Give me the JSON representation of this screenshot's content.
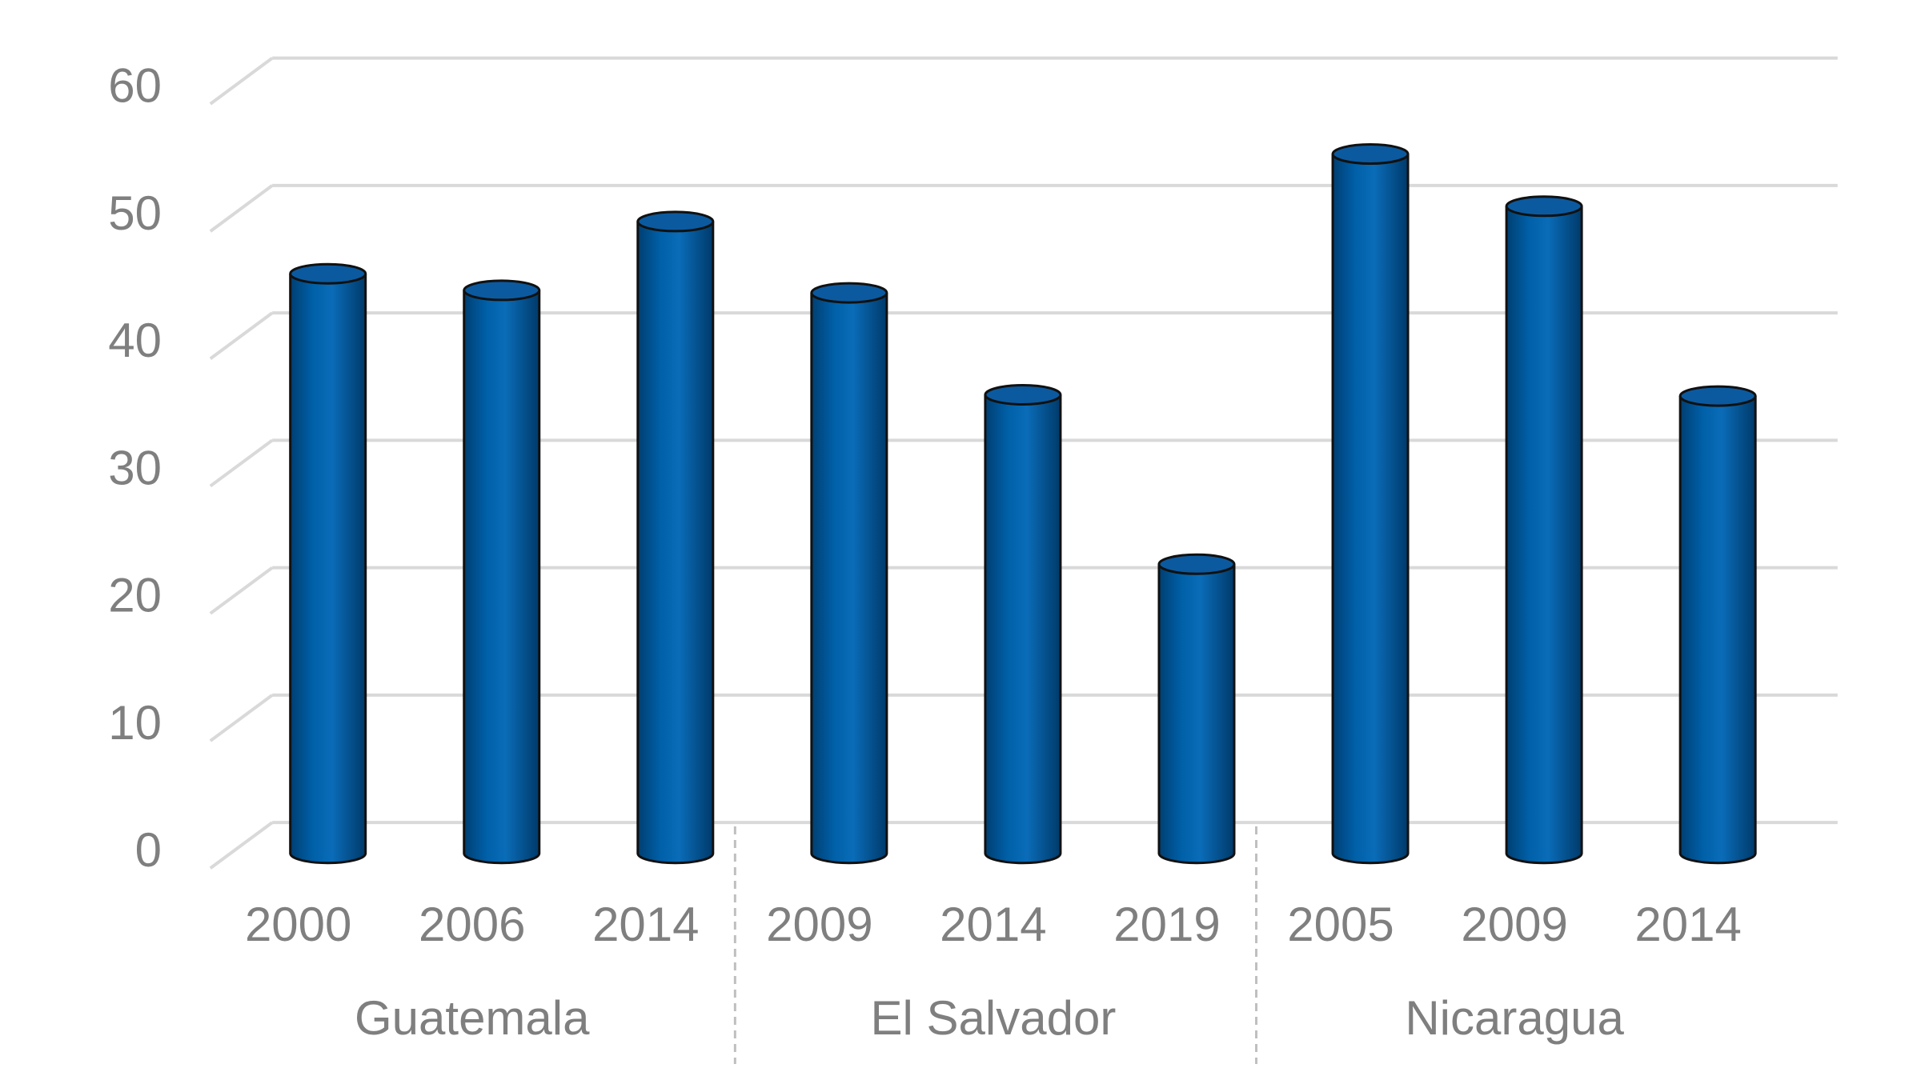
{
  "chart_data": {
    "type": "bar",
    "color": "#0060a8",
    "ylim": [
      0,
      60
    ],
    "yticks": [
      0,
      10,
      20,
      30,
      40,
      50,
      60
    ],
    "grid": true,
    "groups": [
      {
        "name": "Guatemala",
        "categories": [
          "2000",
          "2006",
          "2014"
        ],
        "values": [
          45.5,
          44.2,
          49.6
        ]
      },
      {
        "name": "El Salvador",
        "categories": [
          "2009",
          "2014",
          "2019"
        ],
        "values": [
          44.0,
          36.0,
          22.7
        ]
      },
      {
        "name": "Nicaragua",
        "categories": [
          "2005",
          "2009",
          "2014"
        ],
        "values": [
          54.9,
          50.8,
          35.9
        ]
      }
    ]
  }
}
